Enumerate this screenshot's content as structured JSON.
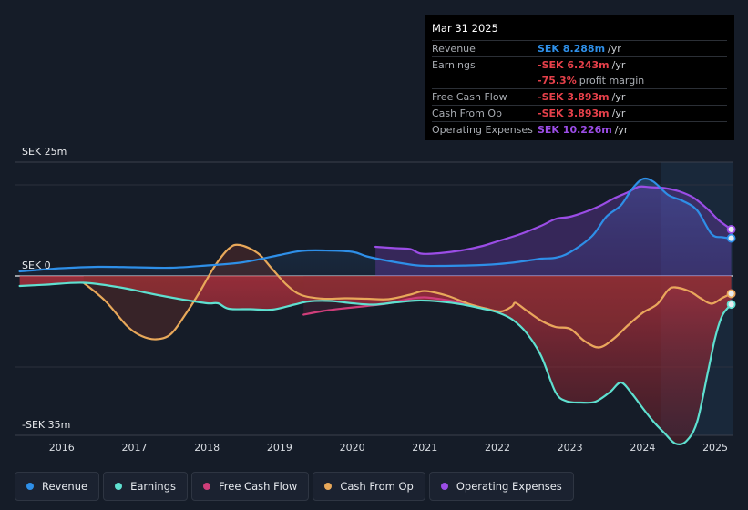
{
  "tooltip": {
    "date": "Mar 31 2025",
    "rows": [
      {
        "label": "Revenue",
        "value": "SEK 8.288m",
        "unit": "/yr",
        "color": "#2e8fe8"
      },
      {
        "label": "Earnings",
        "value": "-SEK 6.243m",
        "unit": "/yr",
        "color": "#e5404a"
      },
      {
        "label": "",
        "value": "-75.3%",
        "unit": "profit margin",
        "color": "#e5404a"
      },
      {
        "label": "Free Cash Flow",
        "value": "-SEK 3.893m",
        "unit": "/yr",
        "color": "#e5404a"
      },
      {
        "label": "Cash From Op",
        "value": "-SEK 3.893m",
        "unit": "/yr",
        "color": "#e5404a"
      },
      {
        "label": "Operating Expenses",
        "value": "SEK 10.226m",
        "unit": "/yr",
        "color": "#9b4de6"
      }
    ]
  },
  "legend": [
    {
      "label": "Revenue",
      "color": "#2e8fe8"
    },
    {
      "label": "Earnings",
      "color": "#5fe0d0"
    },
    {
      "label": "Free Cash Flow",
      "color": "#cf3e7a"
    },
    {
      "label": "Cash From Op",
      "color": "#e8a85a"
    },
    {
      "label": "Operating Expenses",
      "color": "#9b4de6"
    }
  ],
  "chart_data": {
    "type": "line",
    "title": "",
    "xlabel": "",
    "ylabel": "",
    "ylim": [
      -35,
      25
    ],
    "x_range": [
      2015.35,
      2025.25
    ],
    "forecast_start": 2024.25,
    "y_labels": {
      "top": "SEK 25m",
      "zero": "SEK 0",
      "bottom": "-SEK 35m"
    },
    "x_ticks": [
      2016,
      2017,
      2018,
      2019,
      2020,
      2021,
      2022,
      2023,
      2024,
      2025
    ],
    "series": [
      {
        "name": "Revenue",
        "color": "#2e8fe8",
        "points": [
          [
            2015.42,
            1.0
          ],
          [
            2016.0,
            1.7
          ],
          [
            2016.5,
            2.0
          ],
          [
            2017.0,
            1.9
          ],
          [
            2017.5,
            1.8
          ],
          [
            2018.0,
            2.3
          ],
          [
            2018.5,
            3.0
          ],
          [
            2019.0,
            4.6
          ],
          [
            2019.3,
            5.5
          ],
          [
            2019.6,
            5.6
          ],
          [
            2020.0,
            5.3
          ],
          [
            2020.2,
            4.3
          ],
          [
            2020.5,
            3.3
          ],
          [
            2020.9,
            2.3
          ],
          [
            2021.2,
            2.2
          ],
          [
            2021.6,
            2.3
          ],
          [
            2022.0,
            2.6
          ],
          [
            2022.3,
            3.1
          ],
          [
            2022.6,
            3.8
          ],
          [
            2022.8,
            4.0
          ],
          [
            2023.0,
            5.2
          ],
          [
            2023.3,
            8.7
          ],
          [
            2023.5,
            13.0
          ],
          [
            2023.7,
            15.5
          ],
          [
            2023.85,
            19.0
          ],
          [
            2024.0,
            21.3
          ],
          [
            2024.15,
            20.7
          ],
          [
            2024.35,
            17.8
          ],
          [
            2024.55,
            16.5
          ],
          [
            2024.75,
            14.4
          ],
          [
            2024.95,
            9.2
          ],
          [
            2025.1,
            8.5
          ],
          [
            2025.22,
            8.288
          ]
        ]
      },
      {
        "name": "Earnings",
        "color": "#5fe0d0",
        "points": [
          [
            2015.42,
            -2.2
          ],
          [
            2015.8,
            -1.9
          ],
          [
            2016.3,
            -1.5
          ],
          [
            2016.8,
            -2.5
          ],
          [
            2017.2,
            -3.8
          ],
          [
            2017.6,
            -5.0
          ],
          [
            2018.0,
            -6.0
          ],
          [
            2018.15,
            -6.0
          ],
          [
            2018.3,
            -7.2
          ],
          [
            2018.6,
            -7.3
          ],
          [
            2018.9,
            -7.4
          ],
          [
            2019.2,
            -6.3
          ],
          [
            2019.4,
            -5.6
          ],
          [
            2019.7,
            -5.5
          ],
          [
            2020.0,
            -6.0
          ],
          [
            2020.3,
            -6.3
          ],
          [
            2020.6,
            -5.8
          ],
          [
            2020.9,
            -5.4
          ],
          [
            2021.2,
            -5.6
          ],
          [
            2021.5,
            -6.2
          ],
          [
            2021.8,
            -7.2
          ],
          [
            2022.0,
            -8.0
          ],
          [
            2022.2,
            -9.5
          ],
          [
            2022.4,
            -12.5
          ],
          [
            2022.6,
            -17.5
          ],
          [
            2022.8,
            -25.5
          ],
          [
            2022.95,
            -27.5
          ],
          [
            2023.15,
            -27.8
          ],
          [
            2023.35,
            -27.6
          ],
          [
            2023.55,
            -25.5
          ],
          [
            2023.7,
            -23.4
          ],
          [
            2023.85,
            -25.8
          ],
          [
            2024.0,
            -29.0
          ],
          [
            2024.15,
            -32.0
          ],
          [
            2024.3,
            -34.5
          ],
          [
            2024.45,
            -36.8
          ],
          [
            2024.6,
            -36.3
          ],
          [
            2024.75,
            -32.0
          ],
          [
            2024.9,
            -21.0
          ],
          [
            2025.0,
            -13.5
          ],
          [
            2025.1,
            -8.6
          ],
          [
            2025.22,
            -6.243
          ]
        ]
      },
      {
        "name": "Free Cash Flow",
        "color": "#cf3e7a",
        "points": [
          [
            2019.33,
            -8.5
          ],
          [
            2019.6,
            -7.7
          ],
          [
            2019.9,
            -7.1
          ],
          [
            2020.2,
            -6.6
          ],
          [
            2020.5,
            -6.0
          ],
          [
            2020.8,
            -5.0
          ],
          [
            2021.0,
            -4.7
          ],
          [
            2021.3,
            -5.3
          ],
          [
            2021.6,
            -6.2
          ],
          [
            2021.85,
            -7.2
          ],
          [
            2022.05,
            -7.8
          ],
          [
            2022.2,
            -6.7
          ],
          [
            2022.25,
            -5.9
          ],
          [
            2022.4,
            -7.6
          ],
          [
            2022.6,
            -9.8
          ],
          [
            2022.8,
            -11.2
          ],
          [
            2023.0,
            -11.6
          ],
          [
            2023.2,
            -14.3
          ],
          [
            2023.4,
            -15.7
          ],
          [
            2023.6,
            -13.8
          ],
          [
            2023.8,
            -10.8
          ],
          [
            2024.0,
            -8.1
          ],
          [
            2024.2,
            -6.2
          ],
          [
            2024.35,
            -3.1
          ],
          [
            2024.45,
            -2.5
          ],
          [
            2024.65,
            -3.4
          ],
          [
            2024.8,
            -4.9
          ],
          [
            2024.95,
            -6.1
          ],
          [
            2025.1,
            -4.8
          ],
          [
            2025.22,
            -3.893
          ]
        ]
      },
      {
        "name": "Cash From Op",
        "color": "#e8a85a",
        "points": [
          [
            2016.3,
            -1.5
          ],
          [
            2016.6,
            -5.5
          ],
          [
            2016.9,
            -11.0
          ],
          [
            2017.1,
            -13.2
          ],
          [
            2017.3,
            -13.9
          ],
          [
            2017.5,
            -12.8
          ],
          [
            2017.7,
            -8.5
          ],
          [
            2017.9,
            -3.5
          ],
          [
            2018.1,
            2.0
          ],
          [
            2018.3,
            6.0
          ],
          [
            2018.45,
            6.8
          ],
          [
            2018.7,
            5.0
          ],
          [
            2018.9,
            1.5
          ],
          [
            2019.1,
            -2.0
          ],
          [
            2019.3,
            -4.2
          ],
          [
            2019.6,
            -5.0
          ],
          [
            2019.9,
            -4.9
          ],
          [
            2020.2,
            -5.0
          ],
          [
            2020.5,
            -5.1
          ],
          [
            2020.8,
            -4.1
          ],
          [
            2021.0,
            -3.3
          ],
          [
            2021.3,
            -4.3
          ],
          [
            2021.6,
            -6.1
          ],
          [
            2021.85,
            -7.2
          ],
          [
            2022.05,
            -7.8
          ],
          [
            2022.2,
            -6.7
          ],
          [
            2022.25,
            -5.9
          ],
          [
            2022.4,
            -7.6
          ],
          [
            2022.6,
            -9.8
          ],
          [
            2022.8,
            -11.2
          ],
          [
            2023.0,
            -11.6
          ],
          [
            2023.2,
            -14.3
          ],
          [
            2023.4,
            -15.7
          ],
          [
            2023.6,
            -13.8
          ],
          [
            2023.8,
            -10.8
          ],
          [
            2024.0,
            -8.1
          ],
          [
            2024.2,
            -6.2
          ],
          [
            2024.35,
            -3.1
          ],
          [
            2024.45,
            -2.5
          ],
          [
            2024.65,
            -3.4
          ],
          [
            2024.8,
            -4.9
          ],
          [
            2024.95,
            -6.1
          ],
          [
            2025.1,
            -4.8
          ],
          [
            2025.22,
            -3.893
          ]
        ]
      },
      {
        "name": "Operating Expenses",
        "color": "#9b4de6",
        "points": [
          [
            2020.32,
            6.4
          ],
          [
            2020.6,
            6.1
          ],
          [
            2020.8,
            5.9
          ],
          [
            2020.95,
            4.9
          ],
          [
            2021.2,
            5.0
          ],
          [
            2021.5,
            5.6
          ],
          [
            2021.8,
            6.6
          ],
          [
            2022.0,
            7.6
          ],
          [
            2022.3,
            9.1
          ],
          [
            2022.6,
            11.0
          ],
          [
            2022.8,
            12.5
          ],
          [
            2023.0,
            13.0
          ],
          [
            2023.2,
            14.0
          ],
          [
            2023.4,
            15.3
          ],
          [
            2023.6,
            17.0
          ],
          [
            2023.8,
            18.4
          ],
          [
            2023.95,
            19.6
          ],
          [
            2024.1,
            19.5
          ],
          [
            2024.3,
            19.3
          ],
          [
            2024.5,
            18.6
          ],
          [
            2024.7,
            17.2
          ],
          [
            2024.9,
            14.6
          ],
          [
            2025.05,
            12.2
          ],
          [
            2025.22,
            10.226
          ]
        ]
      }
    ]
  }
}
